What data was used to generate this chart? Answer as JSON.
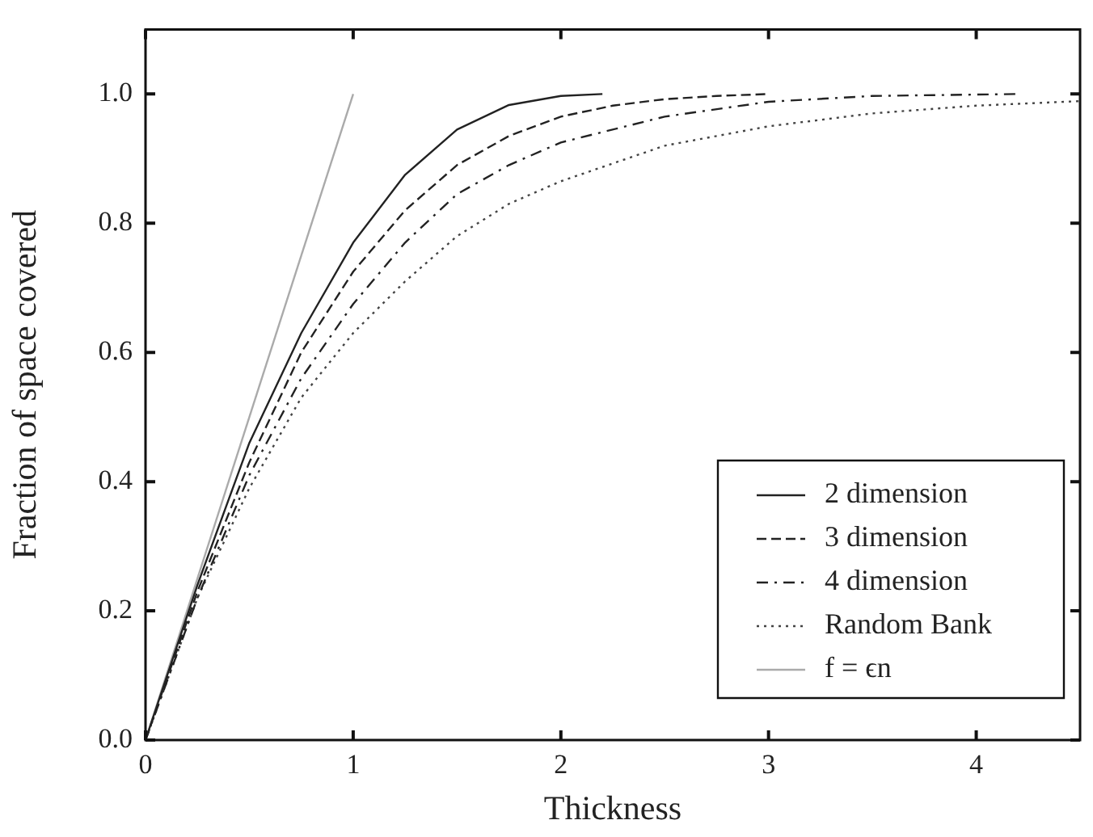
{
  "chart_data": {
    "type": "line",
    "xlabel": "Thickness",
    "ylabel": "Fraction of space covered",
    "xlim": [
      0,
      4.5
    ],
    "ylim": [
      0,
      1.1
    ],
    "xticks": [
      0,
      1,
      2,
      3,
      4
    ],
    "yticks": [
      {
        "value": 0,
        "label": "0.0"
      },
      {
        "value": 0.2,
        "label": "0.2"
      },
      {
        "value": 0.4,
        "label": "0.4"
      },
      {
        "value": 0.6,
        "label": "0.6"
      },
      {
        "value": 0.8,
        "label": "0.8"
      },
      {
        "value": 1,
        "label": "1.0"
      }
    ],
    "grid": false,
    "legend": "bottom right",
    "marker": "none",
    "series": [
      {
        "name": "2 dimension",
        "color": "#222222",
        "line_style": "solid",
        "x": [
          0,
          0.25,
          0.5,
          0.75,
          1,
          1.25,
          1.5,
          1.75,
          2,
          2.2
        ],
        "values": [
          0,
          0.24,
          0.46,
          0.63,
          0.77,
          0.875,
          0.945,
          0.983,
          0.997,
          1
        ]
      },
      {
        "name": "3 dimension",
        "color": "#222222",
        "line_style": "dashed",
        "x": [
          0,
          0.25,
          0.5,
          0.75,
          1,
          1.25,
          1.5,
          1.75,
          2,
          2.25,
          2.5,
          2.75,
          3
        ],
        "values": [
          0,
          0.23,
          0.43,
          0.6,
          0.725,
          0.82,
          0.89,
          0.935,
          0.965,
          0.982,
          0.992,
          0.997,
          1
        ]
      },
      {
        "name": "4 dimension",
        "color": "#222222",
        "line_style": "dashdot",
        "x": [
          0,
          0.25,
          0.5,
          0.75,
          1,
          1.25,
          1.5,
          1.75,
          2,
          2.5,
          3,
          3.5,
          4.2
        ],
        "values": [
          0,
          0.22,
          0.41,
          0.56,
          0.675,
          0.77,
          0.845,
          0.89,
          0.925,
          0.965,
          0.988,
          0.997,
          1
        ]
      },
      {
        "name": "Random Bank",
        "color": "#444444",
        "line_style": "dotted",
        "x": [
          0,
          0.25,
          0.5,
          0.75,
          1,
          1.25,
          1.5,
          1.75,
          2,
          2.5,
          3,
          3.5,
          4,
          4.5
        ],
        "values": [
          0,
          0.22,
          0.39,
          0.53,
          0.63,
          0.71,
          0.78,
          0.83,
          0.865,
          0.92,
          0.95,
          0.97,
          0.982,
          0.989
        ]
      },
      {
        "name": "f = ϵn",
        "color": "#aaaaaa",
        "line_style": "solid",
        "x": [
          0,
          1
        ],
        "values": [
          0,
          1
        ]
      }
    ]
  }
}
